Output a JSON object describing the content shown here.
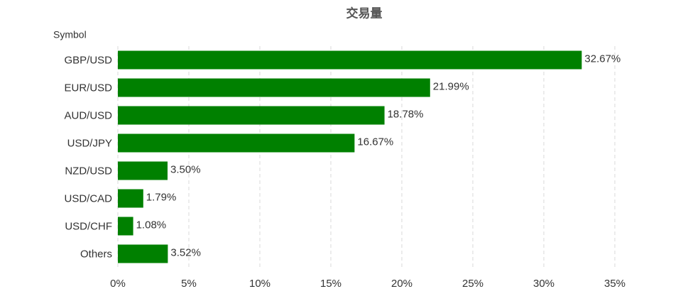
{
  "chart_data": {
    "type": "hbar",
    "title": "交易量",
    "y_label": "Symbol",
    "categories": [
      "GBP/USD",
      "EUR/USD",
      "AUD/USD",
      "USD/JPY",
      "NZD/USD",
      "USD/CAD",
      "USD/CHF",
      "Others"
    ],
    "values": [
      32.67,
      21.99,
      18.78,
      16.67,
      3.5,
      1.79,
      1.08,
      3.52
    ],
    "value_labels": [
      "32.67%",
      "21.99%",
      "18.78%",
      "16.67%",
      "3.50%",
      "1.79%",
      "1.08%",
      "3.52%"
    ],
    "color": "#008000",
    "xlim": [
      0,
      35
    ],
    "xticks": [
      {
        "value": 0,
        "label": "0%"
      },
      {
        "value": 5,
        "label": "5%"
      },
      {
        "value": 10,
        "label": "10%"
      },
      {
        "value": 15,
        "label": "15%"
      },
      {
        "value": 20,
        "label": "20%"
      },
      {
        "value": 25,
        "label": "25%"
      },
      {
        "value": 30,
        "label": "30%"
      },
      {
        "value": 35,
        "label": "35%"
      }
    ],
    "grid": true
  }
}
